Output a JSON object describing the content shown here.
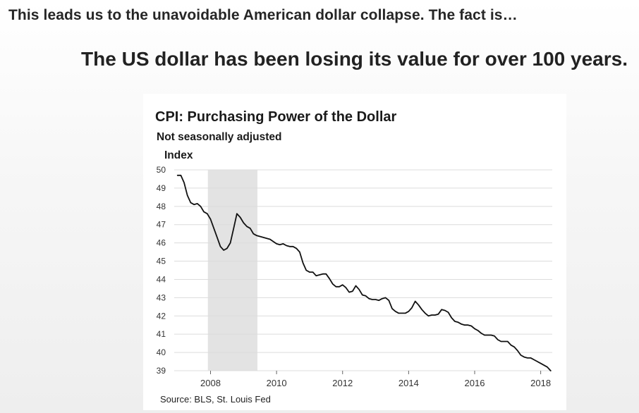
{
  "page": {
    "intro_text": "This leads us to the unavoidable American dollar collapse. The fact is…",
    "headline": "The US dollar has been losing its value for over 100 years."
  },
  "chart_data": {
    "type": "line",
    "title": "CPI: Purchasing Power of the Dollar",
    "subtitle": "Not seasonally adjusted",
    "ylabel": "Index",
    "xlabel": "",
    "source": "Source: BLS, St. Louis Fed",
    "ylim": [
      39,
      50
    ],
    "xlim": [
      2006.9,
      2018.35
    ],
    "yticks": [
      39,
      40,
      41,
      42,
      43,
      44,
      45,
      46,
      47,
      48,
      49,
      50
    ],
    "xticks": [
      2008,
      2010,
      2012,
      2014,
      2016,
      2018
    ],
    "grid": true,
    "legend": "none",
    "colors": {
      "line": "#111111",
      "recession_shade": "#e3e3e3",
      "grid": "#dcdcdc"
    },
    "shaded_regions": [
      {
        "x0": 2007.92,
        "x1": 2009.42
      }
    ],
    "series": [
      {
        "x": [
          2007.0,
          2007.1,
          2007.2,
          2007.3,
          2007.4,
          2007.5,
          2007.6,
          2007.7,
          2007.8,
          2007.9,
          2008.0,
          2008.1,
          2008.2,
          2008.3,
          2008.4,
          2008.5,
          2008.6,
          2008.7,
          2008.8,
          2008.9,
          2009.0,
          2009.1,
          2009.2,
          2009.3,
          2009.4,
          2009.6,
          2009.8,
          2010.0,
          2010.1,
          2010.2,
          2010.3,
          2010.4,
          2010.5,
          2010.6,
          2010.7,
          2010.8,
          2010.9,
          2011.0,
          2011.1,
          2011.2,
          2011.3,
          2011.4,
          2011.5,
          2011.6,
          2011.7,
          2011.8,
          2011.9,
          2012.0,
          2012.1,
          2012.2,
          2012.3,
          2012.4,
          2012.5,
          2012.6,
          2012.7,
          2012.8,
          2012.9,
          2013.0,
          2013.1,
          2013.2,
          2013.3,
          2013.4,
          2013.5,
          2013.6,
          2013.7,
          2013.8,
          2013.9,
          2014.0,
          2014.1,
          2014.2,
          2014.3,
          2014.4,
          2014.5,
          2014.6,
          2014.7,
          2014.8,
          2014.9,
          2015.0,
          2015.1,
          2015.2,
          2015.3,
          2015.4,
          2015.5,
          2015.6,
          2015.7,
          2015.8,
          2015.9,
          2016.0,
          2016.1,
          2016.2,
          2016.3,
          2016.4,
          2016.5,
          2016.6,
          2016.7,
          2016.8,
          2016.9,
          2017.0,
          2017.1,
          2017.2,
          2017.3,
          2017.4,
          2017.5,
          2017.6,
          2017.7,
          2017.8,
          2017.9,
          2018.0,
          2018.1,
          2018.2,
          2018.3
        ],
        "values": [
          49.7,
          49.7,
          49.3,
          48.6,
          48.2,
          48.1,
          48.15,
          48.0,
          47.7,
          47.6,
          47.3,
          46.8,
          46.3,
          45.8,
          45.6,
          45.7,
          46.0,
          46.8,
          47.6,
          47.4,
          47.1,
          46.9,
          46.8,
          46.5,
          46.4,
          46.3,
          46.2,
          45.95,
          45.9,
          45.95,
          45.85,
          45.8,
          45.8,
          45.7,
          45.5,
          44.9,
          44.5,
          44.4,
          44.4,
          44.2,
          44.25,
          44.3,
          44.3,
          44.05,
          43.75,
          43.6,
          43.6,
          43.7,
          43.55,
          43.3,
          43.35,
          43.65,
          43.45,
          43.15,
          43.1,
          42.95,
          42.9,
          42.9,
          42.85,
          42.95,
          43.0,
          42.85,
          42.4,
          42.25,
          42.15,
          42.15,
          42.15,
          42.25,
          42.45,
          42.8,
          42.6,
          42.35,
          42.15,
          42.0,
          42.05,
          42.05,
          42.1,
          42.35,
          42.3,
          42.2,
          41.9,
          41.7,
          41.65,
          41.55,
          41.5,
          41.5,
          41.45,
          41.3,
          41.2,
          41.05,
          40.95,
          40.95,
          40.95,
          40.9,
          40.7,
          40.6,
          40.6,
          40.6,
          40.4,
          40.3,
          40.1,
          39.85,
          39.75,
          39.7,
          39.7,
          39.6,
          39.5,
          39.4,
          39.3,
          39.2,
          39.0
        ]
      }
    ]
  }
}
